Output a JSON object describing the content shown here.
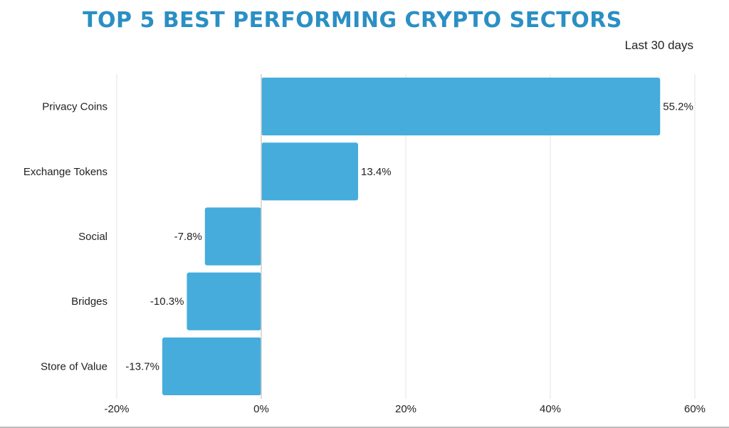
{
  "chart_data": {
    "type": "bar",
    "orientation": "horizontal",
    "title": "TOP 5 BEST PERFORMING CRYPTO SECTORS",
    "subtitle": "Last 30 days",
    "categories": [
      "Privacy Coins",
      "Exchange Tokens",
      "Social",
      "Bridges",
      "Store of Value"
    ],
    "values": [
      55.2,
      13.4,
      -7.8,
      -10.3,
      -13.7
    ],
    "data_labels": [
      "55.2%",
      "13.4%",
      "-7.8%",
      "-10.3%",
      "-13.7%"
    ],
    "xlim": [
      -20,
      60
    ],
    "xticks": [
      -20,
      0,
      20,
      40,
      60
    ],
    "xtick_labels": [
      "-20%",
      "0%",
      "20%",
      "40%",
      "60%"
    ],
    "xlabel": "",
    "ylabel": "",
    "grid": true,
    "bar_color": "#45acdc",
    "title_color": "#2a8fc4"
  }
}
